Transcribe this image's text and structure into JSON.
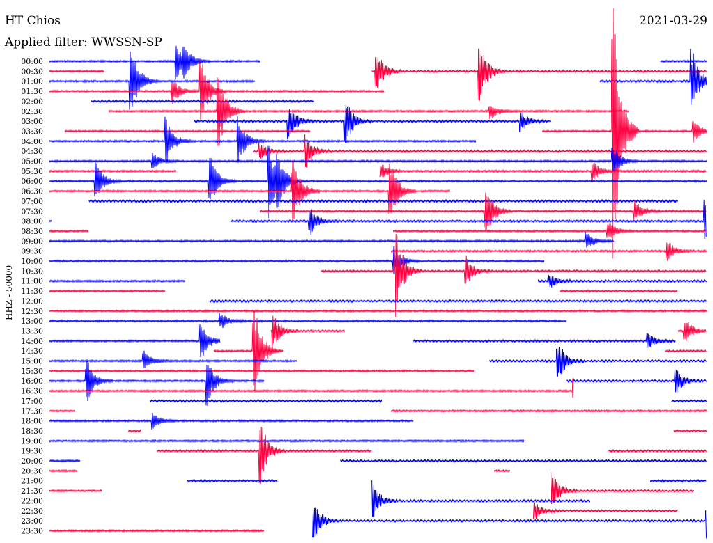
{
  "header": {
    "station": "HT Chios",
    "date": "2021-03-29",
    "filter_label": "Applied filter: WWSSN-SP"
  },
  "chart_data": {
    "type": "line",
    "ylabel": "HHZ - 50000",
    "colors": {
      "even": "#0000ff",
      "odd": "#ff0040"
    },
    "x_unit": "minutes within row (0-30)",
    "rows": [
      {
        "label": "00:00",
        "segments": [
          [
            0,
            9.6
          ],
          [
            27.9,
            30
          ]
        ],
        "events": [
          [
            5.8,
            1
          ],
          [
            6.1,
            1
          ]
        ]
      },
      {
        "label": "00:30",
        "segments": [
          [
            0,
            2.5
          ],
          [
            14.7,
            30
          ]
        ],
        "events": [
          [
            14.9,
            1.4
          ],
          [
            19.6,
            2
          ]
        ]
      },
      {
        "label": "01:00",
        "segments": [
          [
            0,
            9.4
          ],
          [
            25.1,
            30
          ]
        ],
        "events": [
          [
            3.7,
            2.4
          ],
          [
            29.3,
            2
          ]
        ]
      },
      {
        "label": "01:30",
        "segments": [
          [
            0,
            15.3
          ]
        ],
        "events": [
          [
            5.6,
            0.8
          ],
          [
            6.9,
            2
          ]
        ]
      },
      {
        "label": "02:00",
        "segments": [
          [
            1.9,
            12.1
          ]
        ],
        "events": []
      },
      {
        "label": "02:30",
        "segments": [
          [
            2.7,
            26.5
          ]
        ],
        "events": [
          [
            7.7,
            2.5
          ],
          [
            20.1,
            0.5
          ]
        ]
      },
      {
        "label": "03:00",
        "segments": [
          [
            6.6,
            22.9
          ]
        ],
        "events": [
          [
            10.9,
            1.2
          ],
          [
            13.5,
            1.4
          ],
          [
            21.5,
            0.6
          ]
        ]
      },
      {
        "label": "03:30",
        "segments": [
          [
            0.7,
            11.9
          ],
          [
            22.5,
            30
          ]
        ],
        "events": [
          [
            25.7,
            8
          ],
          [
            29.4,
            0.6
          ]
        ]
      },
      {
        "label": "04:00",
        "segments": [
          [
            0,
            19.5
          ]
        ],
        "events": [
          [
            5.3,
            1.4
          ],
          [
            8.6,
            1.5
          ]
        ]
      },
      {
        "label": "04:30",
        "segments": [
          [
            9.3,
            30
          ]
        ],
        "events": [
          [
            11.7,
            1
          ],
          [
            9.6,
            0.5
          ]
        ]
      },
      {
        "label": "05:00",
        "segments": [
          [
            0,
            30
          ]
        ],
        "events": [
          [
            25.7,
            1
          ],
          [
            4.7,
            0.5
          ]
        ]
      },
      {
        "label": "05:30",
        "segments": [
          [
            0,
            5.8
          ],
          [
            15.1,
            30
          ]
        ],
        "events": [
          [
            14.8,
            1.4
          ],
          [
            24.8,
            0.6
          ]
        ]
      },
      {
        "label": "06:00",
        "segments": [
          [
            0,
            30
          ]
        ],
        "events": [
          [
            2.1,
            1.2
          ],
          [
            7.3,
            1.6
          ],
          [
            10,
            2.2
          ],
          [
            10.4,
            1.3
          ]
        ]
      },
      {
        "label": "06:30",
        "segments": [
          [
            0,
            18.3
          ]
        ],
        "events": [
          [
            11.1,
            2.2
          ],
          [
            15.5,
            2.2
          ]
        ]
      },
      {
        "label": "07:00",
        "segments": [
          [
            1.8,
            28.7
          ]
        ],
        "events": []
      },
      {
        "label": "07:30",
        "segments": [
          [
            9.6,
            30
          ]
        ],
        "events": [
          [
            19.9,
            1.6
          ],
          [
            26.7,
            0.7
          ]
        ]
      },
      {
        "label": "08:00",
        "segments": [
          [
            0,
            0.1
          ],
          [
            8.3,
            30
          ]
        ],
        "events": [
          [
            11.9,
            0.8
          ],
          [
            29.9,
            1.4
          ]
        ]
      },
      {
        "label": "08:30",
        "segments": [
          [
            0,
            1.8
          ],
          [
            15.7,
            30
          ]
        ],
        "events": [
          [
            25.5,
            0.6
          ]
        ]
      },
      {
        "label": "09:00",
        "segments": [
          [
            0,
            25.8
          ]
        ],
        "events": [
          [
            24.5,
            0.5
          ]
        ]
      },
      {
        "label": "09:30",
        "segments": [
          [
            15.6,
            30
          ]
        ],
        "events": [
          [
            28.2,
            0.6
          ]
        ]
      },
      {
        "label": "10:00",
        "segments": [
          [
            0,
            22.6
          ]
        ],
        "events": [
          [
            15.7,
            0.9
          ]
        ]
      },
      {
        "label": "10:30",
        "segments": [
          [
            12.4,
            30
          ]
        ],
        "events": [
          [
            15.8,
            2.6
          ],
          [
            19,
            0.9
          ]
        ]
      },
      {
        "label": "11:00",
        "segments": [
          [
            0,
            6.2
          ],
          [
            22.3,
            30
          ]
        ],
        "events": [
          [
            22.8,
            0.5
          ]
        ]
      },
      {
        "label": "11:30",
        "segments": [
          [
            0,
            5.3
          ],
          [
            23.3,
            28.7
          ]
        ],
        "events": []
      },
      {
        "label": "12:00",
        "segments": [
          [
            7.3,
            30
          ]
        ],
        "events": []
      },
      {
        "label": "12:30",
        "segments": [
          [
            0,
            30
          ]
        ],
        "events": []
      },
      {
        "label": "13:00",
        "segments": [
          [
            0,
            23.6
          ]
        ],
        "events": [
          [
            7.8,
            0.5
          ]
        ]
      },
      {
        "label": "13:30",
        "segments": [
          [
            10.1,
            13.5
          ],
          [
            28.7,
            30
          ]
        ],
        "events": [
          [
            10.2,
            1
          ],
          [
            29,
            0.8
          ]
        ]
      },
      {
        "label": "14:00",
        "segments": [
          [
            0,
            7.8
          ],
          [
            16.6,
            28.6
          ]
        ],
        "events": [
          [
            6.9,
            1.2
          ],
          [
            27.3,
            0.5
          ]
        ]
      },
      {
        "label": "14:30",
        "segments": [
          [
            7.5,
            10.7
          ],
          [
            28.1,
            30
          ]
        ],
        "events": [
          [
            9.3,
            3.2
          ]
        ]
      },
      {
        "label": "15:00",
        "segments": [
          [
            0,
            11.3
          ],
          [
            20.1,
            30
          ]
        ],
        "events": [
          [
            4.3,
            0.7
          ],
          [
            23.2,
            1.2
          ]
        ]
      },
      {
        "label": "15:30",
        "segments": [
          [
            0,
            19.4
          ]
        ],
        "events": []
      },
      {
        "label": "16:00",
        "segments": [
          [
            0,
            9.8
          ],
          [
            23.6,
            30
          ]
        ],
        "events": [
          [
            1.7,
            1.3
          ],
          [
            7.2,
            1.4
          ],
          [
            28.6,
            0.8
          ]
        ]
      },
      {
        "label": "16:30",
        "segments": [
          [
            0,
            23.9
          ]
        ],
        "events": [
          [
            23.9,
            0.7
          ]
        ]
      },
      {
        "label": "17:00",
        "segments": [
          [
            4.6,
            15.2
          ],
          [
            28.4,
            30
          ]
        ],
        "events": []
      },
      {
        "label": "17:30",
        "segments": [
          [
            0,
            1.2
          ],
          [
            15.6,
            30
          ]
        ],
        "events": []
      },
      {
        "label": "18:00",
        "segments": [
          [
            0,
            16.6
          ]
        ],
        "events": [
          [
            4.7,
            0.5
          ]
        ]
      },
      {
        "label": "18:30",
        "segments": [
          [
            3.6,
            4.2
          ],
          [
            28.5,
            30
          ]
        ],
        "events": []
      },
      {
        "label": "19:00",
        "segments": [
          [
            0,
            21.7
          ]
        ],
        "events": []
      },
      {
        "label": "19:30",
        "segments": [
          [
            4.9,
            14.7
          ],
          [
            25.5,
            30
          ]
        ],
        "events": [
          [
            9.6,
            2
          ]
        ]
      },
      {
        "label": "20:00",
        "segments": [
          [
            0,
            1.4
          ],
          [
            13.3,
            30
          ]
        ],
        "events": []
      },
      {
        "label": "20:30",
        "segments": [
          [
            0,
            1.3
          ],
          [
            20.3,
            21
          ]
        ],
        "events": []
      },
      {
        "label": "21:00",
        "segments": [
          [
            6.3,
            10.4
          ],
          [
            27.4,
            30
          ]
        ],
        "events": []
      },
      {
        "label": "21:30",
        "segments": [
          [
            0,
            2.4
          ],
          [
            22.9,
            29.4
          ]
        ],
        "events": [
          [
            22.9,
            1.2
          ]
        ]
      },
      {
        "label": "22:00",
        "segments": [
          [
            14.7,
            24.7
          ]
        ],
        "events": [
          [
            14.7,
            1.2
          ]
        ]
      },
      {
        "label": "22:30",
        "segments": [
          [
            22.1,
            28.7
          ]
        ],
        "events": [
          [
            22.1,
            0.6
          ]
        ]
      },
      {
        "label": "23:00",
        "segments": [
          [
            12,
            30
          ]
        ],
        "events": [
          [
            12,
            1.4
          ],
          [
            30,
            1
          ]
        ]
      },
      {
        "label": "23:30",
        "segments": [
          [
            0,
            9.8
          ]
        ],
        "events": []
      }
    ]
  }
}
